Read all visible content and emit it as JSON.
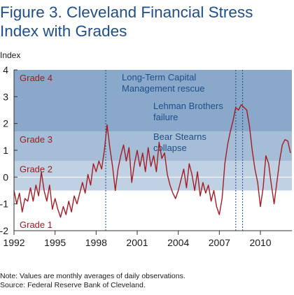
{
  "title_lines": [
    "Figure 3. Cleveland Financial Stress",
    "Index with Grades"
  ],
  "notes": [
    "Note: Values are monthly averages of daily observations.",
    "Source: Federal Reserve Bank of Cleveland."
  ],
  "colors": {
    "title": "#1f4f8a",
    "line": "#a31d24",
    "grade4": "#8aa8c9",
    "grade3": "#a5bdd6",
    "grade2": "#c0d1e4",
    "grade1": "#ffffff",
    "annotation": "#1f4f8a"
  },
  "chart_data": {
    "type": "line",
    "ylabel": "Index",
    "ylim": [
      -2,
      4
    ],
    "xlim": [
      1992,
      2012.3
    ],
    "yticks": [
      -2,
      -1,
      0,
      1,
      2,
      3,
      4
    ],
    "xticks": [
      1992,
      1995,
      1998,
      2001,
      2004,
      2007,
      2010
    ],
    "grid": false,
    "grades": [
      {
        "label": "Grade 4",
        "from": 1.7,
        "to": 4
      },
      {
        "label": "Grade 3",
        "from": 0.6,
        "to": 1.7
      },
      {
        "label": "Grade 2",
        "from": -0.5,
        "to": 0.6
      },
      {
        "label": "Grade 1",
        "from": -2,
        "to": -0.5
      }
    ],
    "annotations": [
      {
        "lines": [
          "Long-Term Capital",
          "Management rescue"
        ],
        "x": 1998.7
      },
      {
        "lines": [
          "Lehman Brothers",
          "failure"
        ],
        "x": 2008.7
      },
      {
        "lines": [
          "Bear Stearns",
          "collapse"
        ],
        "x": 2008.2
      }
    ],
    "series": [
      {
        "values": [
          [
            1992.0,
            -0.5
          ],
          [
            1992.2,
            -1.0
          ],
          [
            1992.4,
            -0.6
          ],
          [
            1992.6,
            -1.3
          ],
          [
            1992.8,
            -0.8
          ],
          [
            1993.0,
            -0.9
          ],
          [
            1993.2,
            -0.4
          ],
          [
            1993.4,
            -0.9
          ],
          [
            1993.6,
            -0.3
          ],
          [
            1993.8,
            -0.7
          ],
          [
            1994.0,
            0.2
          ],
          [
            1994.2,
            -0.5
          ],
          [
            1994.4,
            -0.9
          ],
          [
            1994.6,
            -0.3
          ],
          [
            1994.8,
            -1.2
          ],
          [
            1995.0,
            -0.8
          ],
          [
            1995.2,
            -1.2
          ],
          [
            1995.4,
            -1.5
          ],
          [
            1995.6,
            -1.1
          ],
          [
            1995.8,
            -1.4
          ],
          [
            1996.0,
            -0.9
          ],
          [
            1996.2,
            -1.3
          ],
          [
            1996.4,
            -0.7
          ],
          [
            1996.6,
            -1.0
          ],
          [
            1996.8,
            -0.6
          ],
          [
            1997.0,
            -0.2
          ],
          [
            1997.2,
            -0.6
          ],
          [
            1997.4,
            0.1
          ],
          [
            1997.6,
            -0.3
          ],
          [
            1997.8,
            0.5
          ],
          [
            1998.0,
            0.2
          ],
          [
            1998.2,
            0.6
          ],
          [
            1998.4,
            0.3
          ],
          [
            1998.6,
            1.0
          ],
          [
            1998.8,
            1.95
          ],
          [
            1999.0,
            1.1
          ],
          [
            1999.2,
            0.4
          ],
          [
            1999.4,
            -0.5
          ],
          [
            1999.6,
            0.3
          ],
          [
            1999.8,
            0.8
          ],
          [
            2000.0,
            1.2
          ],
          [
            2000.2,
            0.6
          ],
          [
            2000.4,
            1.1
          ],
          [
            2000.6,
            -0.2
          ],
          [
            2000.8,
            0.5
          ],
          [
            2001.0,
            1.0
          ],
          [
            2001.2,
            0.4
          ],
          [
            2001.4,
            0.9
          ],
          [
            2001.6,
            0.2
          ],
          [
            2001.8,
            1.1
          ],
          [
            2002.0,
            0.4
          ],
          [
            2002.2,
            0.8
          ],
          [
            2002.4,
            0.2
          ],
          [
            2002.6,
            1.3
          ],
          [
            2002.8,
            0.7
          ],
          [
            2003.0,
            0.9
          ],
          [
            2003.2,
            0.1
          ],
          [
            2003.4,
            -0.3
          ],
          [
            2003.6,
            -0.6
          ],
          [
            2003.8,
            -0.8
          ],
          [
            2004.0,
            -0.5
          ],
          [
            2004.2,
            -0.1
          ],
          [
            2004.4,
            0.3
          ],
          [
            2004.6,
            -0.4
          ],
          [
            2004.8,
            0.5
          ],
          [
            2005.0,
            0.1
          ],
          [
            2005.2,
            -0.5
          ],
          [
            2005.4,
            0.2
          ],
          [
            2005.6,
            -0.7
          ],
          [
            2005.8,
            -0.2
          ],
          [
            2006.0,
            -0.6
          ],
          [
            2006.2,
            -0.3
          ],
          [
            2006.4,
            -0.9
          ],
          [
            2006.6,
            -0.5
          ],
          [
            2006.8,
            -1.1
          ],
          [
            2007.0,
            -1.4
          ],
          [
            2007.2,
            -0.8
          ],
          [
            2007.4,
            0.5
          ],
          [
            2007.6,
            1.2
          ],
          [
            2007.8,
            1.7
          ],
          [
            2008.0,
            2.1
          ],
          [
            2008.2,
            2.6
          ],
          [
            2008.4,
            2.5
          ],
          [
            2008.6,
            2.7
          ],
          [
            2008.8,
            2.6
          ],
          [
            2009.0,
            2.5
          ],
          [
            2009.2,
            1.9
          ],
          [
            2009.4,
            1.0
          ],
          [
            2009.6,
            0.3
          ],
          [
            2009.8,
            -0.2
          ],
          [
            2010.0,
            -1.1
          ],
          [
            2010.2,
            -0.4
          ],
          [
            2010.4,
            0.8
          ],
          [
            2010.6,
            0.5
          ],
          [
            2010.8,
            -0.3
          ],
          [
            2011.0,
            -1.0
          ],
          [
            2011.2,
            -0.2
          ],
          [
            2011.4,
            0.6
          ],
          [
            2011.6,
            1.2
          ],
          [
            2011.8,
            1.4
          ],
          [
            2012.0,
            1.35
          ],
          [
            2012.2,
            0.9
          ]
        ]
      }
    ]
  }
}
